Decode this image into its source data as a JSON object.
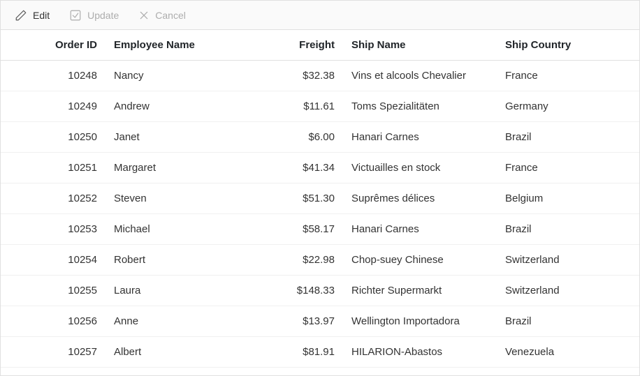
{
  "toolbar": {
    "edit": {
      "label": "Edit",
      "enabled": true
    },
    "update": {
      "label": "Update",
      "enabled": false
    },
    "cancel": {
      "label": "Cancel",
      "enabled": false
    }
  },
  "columns": {
    "order_id": "Order ID",
    "employee": "Employee Name",
    "freight": "Freight",
    "ship_name": "Ship Name",
    "ship_country": "Ship Country"
  },
  "rows": [
    {
      "order_id": "10248",
      "employee": "Nancy",
      "freight": "$32.38",
      "ship_name": "Vins et alcools Chevalier",
      "ship_country": "France"
    },
    {
      "order_id": "10249",
      "employee": "Andrew",
      "freight": "$11.61",
      "ship_name": "Toms Spezialitäten",
      "ship_country": "Germany"
    },
    {
      "order_id": "10250",
      "employee": "Janet",
      "freight": "$6.00",
      "ship_name": "Hanari Carnes",
      "ship_country": "Brazil"
    },
    {
      "order_id": "10251",
      "employee": "Margaret",
      "freight": "$41.34",
      "ship_name": "Victuailles en stock",
      "ship_country": "France"
    },
    {
      "order_id": "10252",
      "employee": "Steven",
      "freight": "$51.30",
      "ship_name": "Suprêmes délices",
      "ship_country": "Belgium"
    },
    {
      "order_id": "10253",
      "employee": "Michael",
      "freight": "$58.17",
      "ship_name": "Hanari Carnes",
      "ship_country": "Brazil"
    },
    {
      "order_id": "10254",
      "employee": "Robert",
      "freight": "$22.98",
      "ship_name": "Chop-suey Chinese",
      "ship_country": "Switzerland"
    },
    {
      "order_id": "10255",
      "employee": "Laura",
      "freight": "$148.33",
      "ship_name": "Richter Supermarkt",
      "ship_country": "Switzerland"
    },
    {
      "order_id": "10256",
      "employee": "Anne",
      "freight": "$13.97",
      "ship_name": "Wellington Importadora",
      "ship_country": "Brazil"
    },
    {
      "order_id": "10257",
      "employee": "Albert",
      "freight": "$81.91",
      "ship_name": "HILARION-Abastos",
      "ship_country": "Venezuela"
    }
  ],
  "colors": {
    "text": "#333333",
    "disabled": "#adadad",
    "border": "#e0e0e0",
    "row_border": "#f0f0f0",
    "toolbar_bg": "#fafafa"
  }
}
